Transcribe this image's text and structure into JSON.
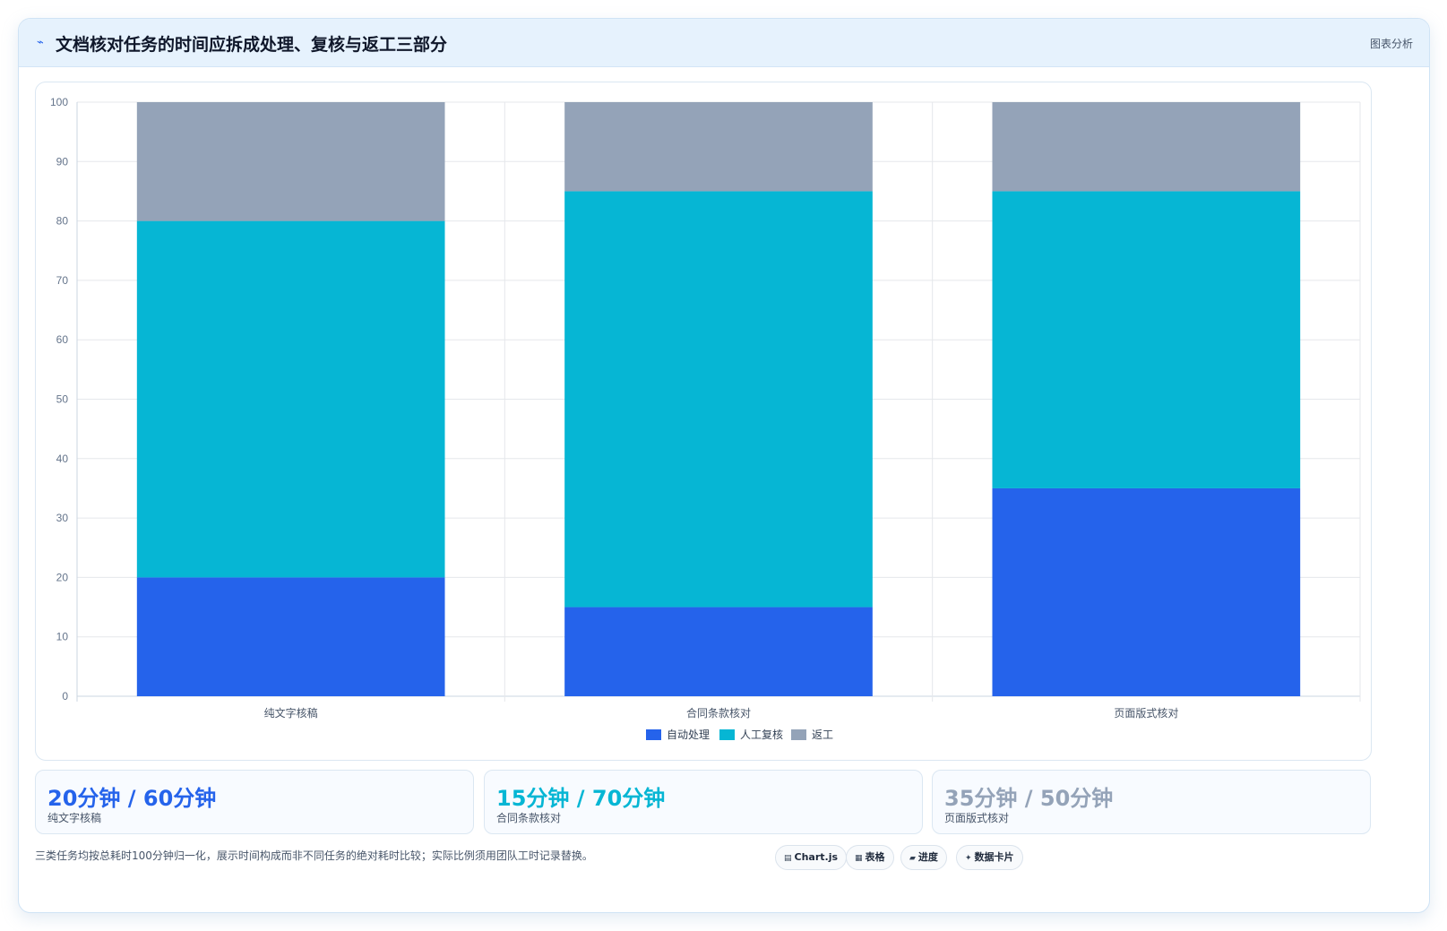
{
  "header": {
    "title": "文档核对任务的时间应拆成处理、复核与返工三部分",
    "tag": "图表分析",
    "icon": "pulse-icon"
  },
  "chart_data": {
    "type": "bar",
    "stacked": true,
    "categories": [
      "纯文字核稿",
      "合同条款核对",
      "页面版式核对"
    ],
    "series": [
      {
        "name": "自动处理",
        "values": [
          20,
          15,
          35
        ],
        "color": "#2563eb"
      },
      {
        "name": "人工复核",
        "values": [
          60,
          70,
          50
        ],
        "color": "#06b6d4"
      },
      {
        "name": "返工",
        "values": [
          20,
          15,
          15
        ],
        "color": "#94a3b8"
      }
    ],
    "ylim": [
      0,
      100
    ],
    "yticks": [
      0,
      10,
      20,
      30,
      40,
      50,
      60,
      70,
      80,
      90,
      100
    ],
    "grid": true,
    "legend": "bottom"
  },
  "stats": [
    {
      "value": "20分钟 / 60分钟",
      "label": "纯文字核稿",
      "color": "#2563eb"
    },
    {
      "value": "15分钟 / 70分钟",
      "label": "合同条款核对",
      "color": "#06b6d4"
    },
    {
      "value": "35分钟 / 50分钟",
      "label": "页面版式核对",
      "color": "#94a3b8"
    }
  ],
  "footnote": "三类任务均按总耗时100分钟归一化，展示时间构成而非不同任务的绝对耗时比较；实际比例须用团队工时记录替换。",
  "chips": [
    {
      "label": "Chart.js",
      "icon": "chart-icon"
    },
    {
      "label": "表格",
      "icon": "table-icon"
    },
    {
      "label": "进度",
      "icon": "progress-icon"
    },
    {
      "label": "数据卡片",
      "icon": "sparkle-icon"
    }
  ]
}
